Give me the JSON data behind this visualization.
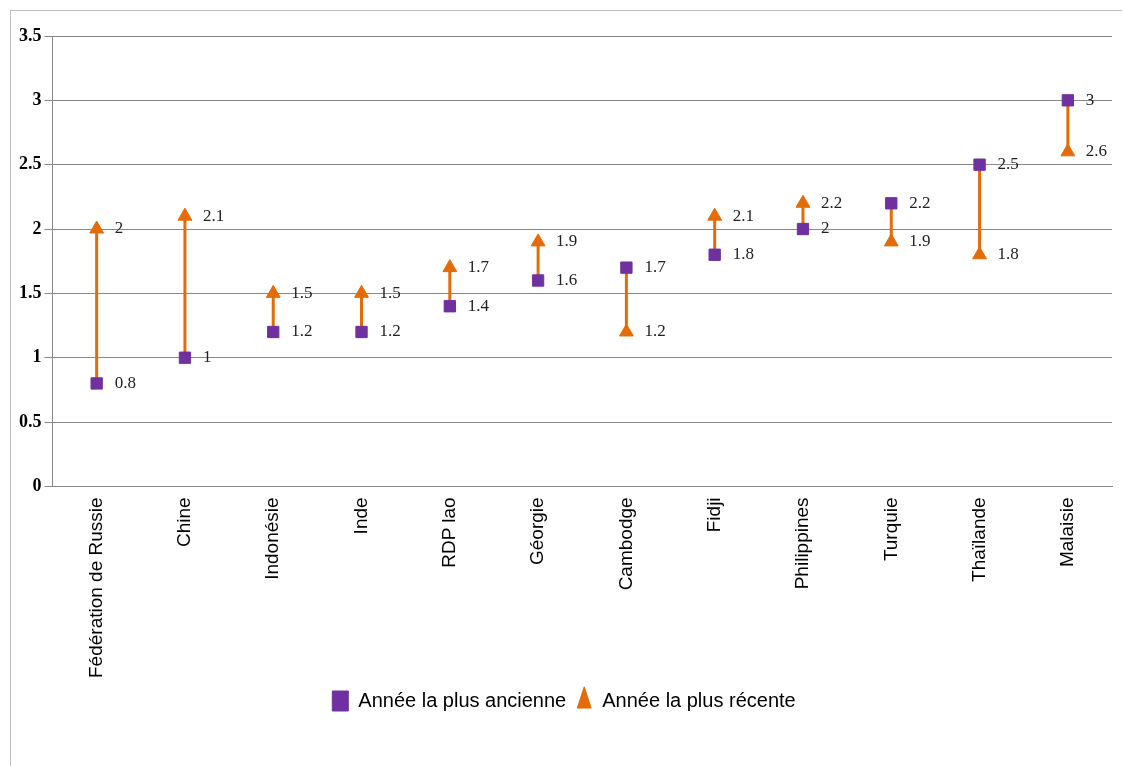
{
  "chart_data": {
    "type": "scatter",
    "categories": [
      "Fédération de Russie",
      "Chine",
      "Indonésie",
      "Inde",
      "RDP lao",
      "Géorgie",
      "Cambodge",
      "Fidji",
      "Philippines",
      "Turquie",
      "Thaïlande",
      "Malaisie"
    ],
    "series": [
      {
        "name": "Année la plus ancienne",
        "color": "#7030a0",
        "marker": "square",
        "values": [
          0.8,
          1,
          1.2,
          1.2,
          1.4,
          1.6,
          1.7,
          1.8,
          2,
          2.2,
          2.5,
          3
        ]
      },
      {
        "name": "Année la plus récente",
        "color": "#e36c09",
        "marker": "triangle",
        "values": [
          2,
          2.1,
          1.5,
          1.5,
          1.7,
          1.9,
          1.2,
          2.1,
          2.2,
          1.9,
          1.8,
          2.6
        ]
      }
    ],
    "ylim": [
      0,
      3.5
    ],
    "yticks": [
      0,
      0.5,
      1,
      1.5,
      2,
      2.5,
      3,
      3.5
    ],
    "grid": "y",
    "legend": "bottom",
    "data_labels": true
  }
}
